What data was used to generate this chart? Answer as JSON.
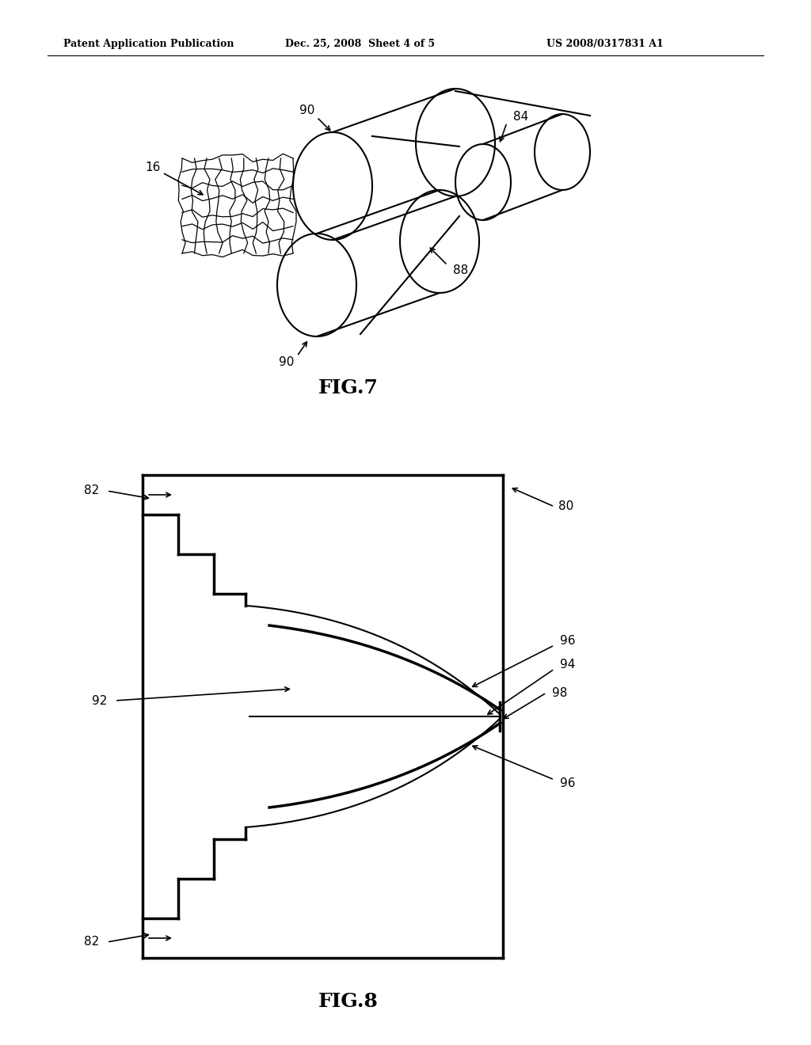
{
  "bg_color": "#ffffff",
  "line_color": "#000000",
  "header_text": "Patent Application Publication",
  "header_date": "Dec. 25, 2008  Sheet 4 of 5",
  "header_patent": "US 2008/0317831 A1",
  "fig7_label": "FIG.7",
  "fig8_label": "FIG.8"
}
